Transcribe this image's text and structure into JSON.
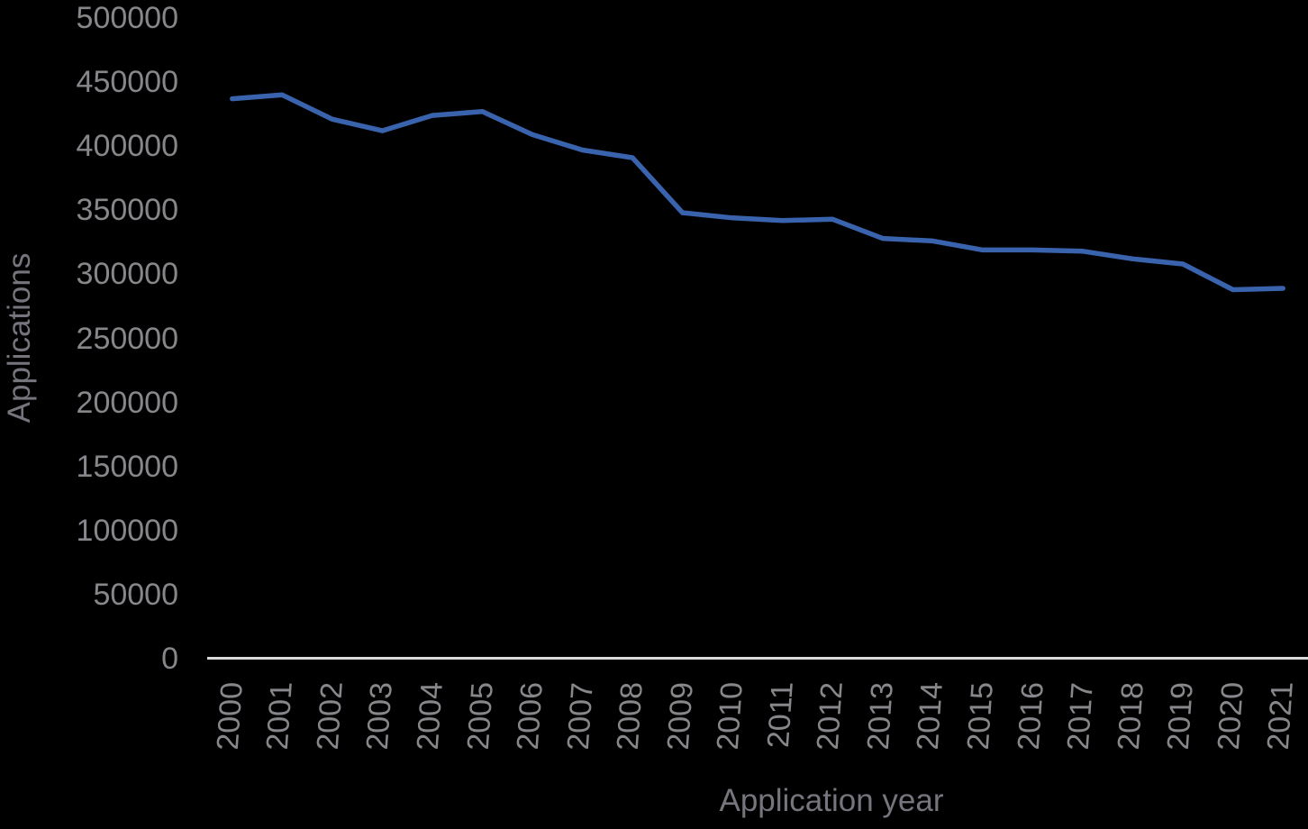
{
  "chart_data": {
    "type": "line",
    "title": "",
    "xlabel": "Application year",
    "ylabel": "Applications",
    "categories": [
      "2000",
      "2001",
      "2002",
      "2003",
      "2004",
      "2005",
      "2006",
      "2007",
      "2008",
      "2009",
      "2010",
      "2011",
      "2012",
      "2013",
      "2014",
      "2015",
      "2016",
      "2017",
      "2018",
      "2019",
      "2020",
      "2021"
    ],
    "series": [
      {
        "name": "Applications",
        "values": [
          437000,
          440000,
          421000,
          412000,
          424000,
          427000,
          409000,
          397000,
          391000,
          348000,
          344000,
          342000,
          343000,
          328000,
          326000,
          319000,
          319000,
          318000,
          312000,
          308000,
          288000,
          289000
        ]
      }
    ],
    "ylim": [
      0,
      500000
    ],
    "ytick_interval": 50000,
    "yticks": [
      0,
      50000,
      100000,
      150000,
      200000,
      250000,
      300000,
      350000,
      400000,
      450000,
      500000
    ],
    "grid": false,
    "legend": false
  },
  "style": {
    "background": "#000000",
    "line_color": "#3A63AD",
    "tick_label_color": "#87878B",
    "axis_title_color": "#75757D",
    "axis_line_color": "#D9D9D9"
  }
}
